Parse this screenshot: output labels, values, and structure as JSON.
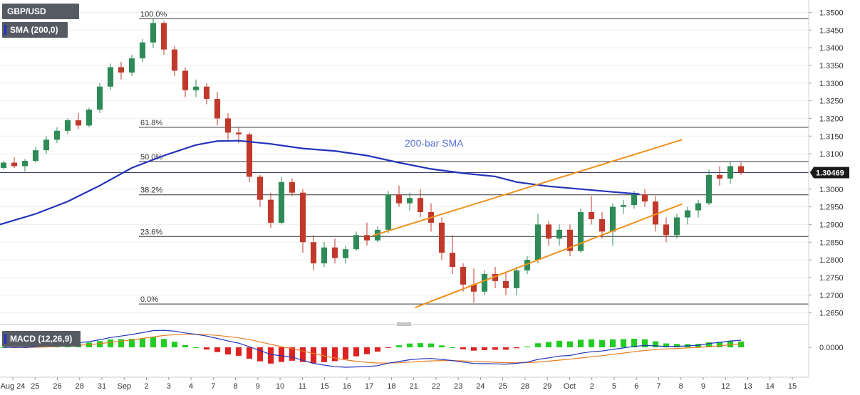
{
  "chart_data": {
    "type": "candlestick",
    "symbol": "GBP/USD",
    "price_axis": {
      "min": 1.265,
      "max": 1.35,
      "step": 0.005,
      "ticks": [
        "1.3500",
        "1.3450",
        "1.3400",
        "1.3350",
        "1.3300",
        "1.3250",
        "1.3200",
        "1.3150",
        "1.3100",
        "1.3050",
        "1.3000",
        "1.2950",
        "1.2900",
        "1.2850",
        "1.2800",
        "1.2750",
        "1.2700",
        "1.2650"
      ]
    },
    "current_price": {
      "value": 1.30469,
      "label": "1.30469"
    },
    "x_axis": {
      "labels": [
        "Aug 24",
        "25",
        "26",
        "28",
        "31",
        "Sep",
        "2",
        "3",
        "4",
        "7",
        "8",
        "9",
        "10",
        "11",
        "15",
        "16",
        "17",
        "18",
        "21",
        "22",
        "23",
        "24",
        "25",
        "28",
        "29",
        "Oct",
        "2",
        "5",
        "6",
        "7",
        "8",
        "9",
        "12",
        "13",
        "14",
        "15"
      ]
    },
    "fibonacci": [
      {
        "label": "100.0%",
        "price": 1.3482
      },
      {
        "label": "61.8%",
        "price": 1.3175
      },
      {
        "label": "50.0%",
        "price": 1.3078
      },
      {
        "label": "38.2%",
        "price": 1.2984
      },
      {
        "label": "23.6%",
        "price": 1.2866
      },
      {
        "label": "0.0%",
        "price": 1.2675
      }
    ],
    "sma_label": "SMA (200,0)",
    "sma_annotation": "200-bar SMA",
    "sma_200": [
      {
        "t": 0,
        "p": 1.29
      },
      {
        "t": 3,
        "p": 1.293
      },
      {
        "t": 6,
        "p": 1.2965
      },
      {
        "t": 9,
        "p": 1.301
      },
      {
        "t": 12,
        "p": 1.306
      },
      {
        "t": 15,
        "p": 1.3095
      },
      {
        "t": 18,
        "p": 1.3125
      },
      {
        "t": 20,
        "p": 1.3136
      },
      {
        "t": 22,
        "p": 1.3137
      },
      {
        "t": 25,
        "p": 1.3128
      },
      {
        "t": 28,
        "p": 1.3115
      },
      {
        "t": 31,
        "p": 1.3108
      },
      {
        "t": 34,
        "p": 1.3095
      },
      {
        "t": 37,
        "p": 1.3075
      },
      {
        "t": 40,
        "p": 1.3057
      },
      {
        "t": 43,
        "p": 1.3045
      },
      {
        "t": 46,
        "p": 1.3036
      },
      {
        "t": 48,
        "p": 1.302
      },
      {
        "t": 51,
        "p": 1.3008
      },
      {
        "t": 54,
        "p": 1.3
      },
      {
        "t": 57,
        "p": 1.2992
      },
      {
        "t": 59.5,
        "p": 1.2986
      }
    ],
    "channel": [
      {
        "name": "upper",
        "from": {
          "t": 34.5,
          "p": 1.2868
        },
        "to": {
          "t": 63.5,
          "p": 1.314
        }
      },
      {
        "name": "lower",
        "from": {
          "t": 38.5,
          "p": 1.2665
        },
        "to": {
          "t": 63.5,
          "p": 1.2958
        }
      }
    ],
    "candles": [
      [
        1.306,
        1.308,
        1.3055,
        1.3075
      ],
      [
        1.3075,
        1.309,
        1.306,
        1.3065
      ],
      [
        1.3065,
        1.3085,
        1.305,
        1.308
      ],
      [
        1.308,
        1.312,
        1.3075,
        1.311
      ],
      [
        1.311,
        1.315,
        1.31,
        1.314
      ],
      [
        1.314,
        1.3175,
        1.313,
        1.3165
      ],
      [
        1.3165,
        1.32,
        1.3155,
        1.3195
      ],
      [
        1.3195,
        1.3215,
        1.317,
        1.318
      ],
      [
        1.318,
        1.323,
        1.3175,
        1.3225
      ],
      [
        1.3225,
        1.33,
        1.3215,
        1.329
      ],
      [
        1.329,
        1.3355,
        1.328,
        1.3345
      ],
      [
        1.3345,
        1.336,
        1.331,
        1.333
      ],
      [
        1.333,
        1.338,
        1.332,
        1.337
      ],
      [
        1.337,
        1.3425,
        1.336,
        1.3415
      ],
      [
        1.3415,
        1.3482,
        1.34,
        1.347
      ],
      [
        1.347,
        1.3475,
        1.338,
        1.3395
      ],
      [
        1.3395,
        1.3405,
        1.332,
        1.3335
      ],
      [
        1.3335,
        1.3345,
        1.326,
        1.328
      ],
      [
        1.328,
        1.331,
        1.326,
        1.329
      ],
      [
        1.329,
        1.33,
        1.324,
        1.3255
      ],
      [
        1.3255,
        1.3275,
        1.318,
        1.32
      ],
      [
        1.32,
        1.3215,
        1.314,
        1.316
      ],
      [
        1.316,
        1.3175,
        1.313,
        1.3155
      ],
      [
        1.3155,
        1.316,
        1.302,
        1.3035
      ],
      [
        1.3035,
        1.304,
        1.295,
        1.297
      ],
      [
        1.297,
        1.299,
        1.289,
        1.2905
      ],
      [
        1.2905,
        1.3035,
        1.29,
        1.302
      ],
      [
        1.302,
        1.303,
        1.298,
        1.299
      ],
      [
        1.299,
        1.3,
        1.282,
        1.285
      ],
      [
        1.285,
        1.287,
        1.277,
        1.279
      ],
      [
        1.279,
        1.285,
        1.278,
        1.2835
      ],
      [
        1.2835,
        1.286,
        1.279,
        1.2805
      ],
      [
        1.2805,
        1.284,
        1.279,
        1.283
      ],
      [
        1.283,
        1.288,
        1.2825,
        1.287
      ],
      [
        1.287,
        1.2905,
        1.284,
        1.2855
      ],
      [
        1.2855,
        1.2895,
        1.285,
        1.2885
      ],
      [
        1.2885,
        1.2995,
        1.2875,
        1.2985
      ],
      [
        1.2985,
        1.301,
        1.295,
        1.296
      ],
      [
        1.296,
        1.299,
        1.294,
        1.2975
      ],
      [
        1.2975,
        1.3,
        1.292,
        1.2935
      ],
      [
        1.2935,
        1.296,
        1.288,
        1.2905
      ],
      [
        1.2905,
        1.292,
        1.28,
        1.282
      ],
      [
        1.282,
        1.287,
        1.276,
        1.278
      ],
      [
        1.278,
        1.279,
        1.271,
        1.273
      ],
      [
        1.273,
        1.2775,
        1.2678,
        1.271
      ],
      [
        1.271,
        1.277,
        1.27,
        1.276
      ],
      [
        1.276,
        1.278,
        1.272,
        1.274
      ],
      [
        1.274,
        1.2765,
        1.27,
        1.272
      ],
      [
        1.272,
        1.278,
        1.27,
        1.277
      ],
      [
        1.277,
        1.281,
        1.276,
        1.28
      ],
      [
        1.28,
        1.293,
        1.279,
        1.29
      ],
      [
        1.29,
        1.291,
        1.284,
        1.286
      ],
      [
        1.286,
        1.29,
        1.284,
        1.2885
      ],
      [
        1.2885,
        1.29,
        1.281,
        1.2825
      ],
      [
        1.2825,
        1.2945,
        1.282,
        1.2935
      ],
      [
        1.2935,
        1.298,
        1.29,
        1.2915
      ],
      [
        1.2915,
        1.2935,
        1.286,
        1.288
      ],
      [
        1.288,
        1.296,
        1.284,
        1.295
      ],
      [
        1.295,
        1.297,
        1.293,
        1.2955
      ],
      [
        1.2955,
        1.2995,
        1.2945,
        1.2985
      ],
      [
        1.2985,
        1.3,
        1.295,
        1.2965
      ],
      [
        1.2965,
        1.298,
        1.288,
        1.29
      ],
      [
        1.29,
        1.292,
        1.285,
        1.287
      ],
      [
        1.287,
        1.293,
        1.286,
        1.292
      ],
      [
        1.292,
        1.295,
        1.29,
        1.294
      ],
      [
        1.294,
        1.297,
        1.292,
        1.296
      ],
      [
        1.296,
        1.3055,
        1.2955,
        1.304
      ],
      [
        1.304,
        1.3065,
        1.301,
        1.303
      ],
      [
        1.303,
        1.308,
        1.3015,
        1.3065
      ],
      [
        1.3065,
        1.3075,
        1.304,
        1.3047
      ]
    ],
    "macd": {
      "label": "MACD (12,26,9)",
      "axis_tick": "0.0000"
    }
  }
}
